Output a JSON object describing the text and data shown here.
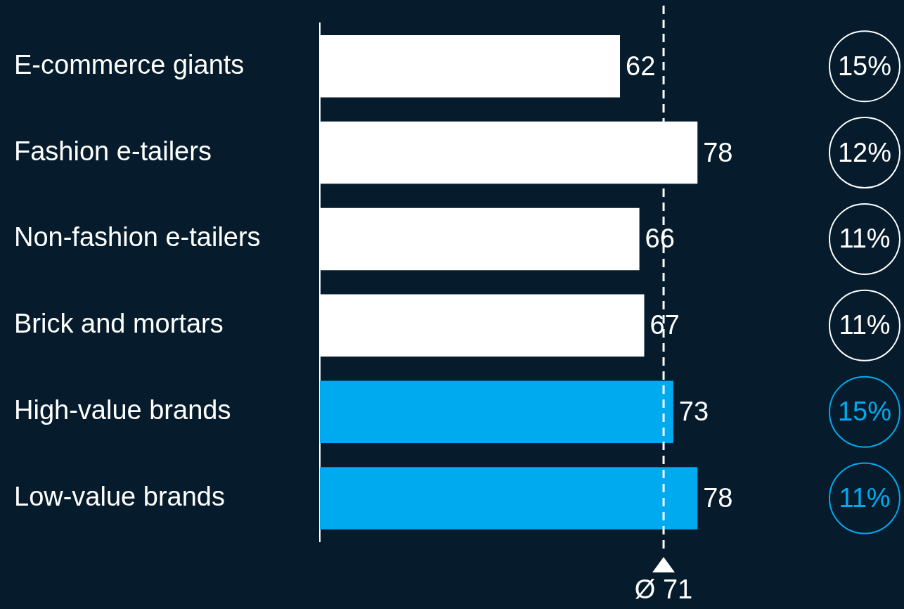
{
  "chart_data": {
    "type": "bar",
    "orientation": "horizontal",
    "categories": [
      "E-commerce giants",
      "Fashion e-tailers",
      "Non-fashion e-tailers",
      "Brick and mortars",
      "High-value brands",
      "Low-value brands"
    ],
    "values": [
      62,
      78,
      66,
      67,
      73,
      78
    ],
    "colors": [
      "#ffffff",
      "#ffffff",
      "#ffffff",
      "#ffffff",
      "#00aaee",
      "#00aaee"
    ],
    "tick_labels": "y",
    "grid": false,
    "legend": false,
    "data_labels": true,
    "ref_lines": [
      {
        "axis": "x",
        "value": 71,
        "label": "Ø 71",
        "color": "#ffffff",
        "line_style": "dashed"
      }
    ],
    "annotations": [
      "15%",
      "12%",
      "11%",
      "11%",
      "15%",
      "11%"
    ]
  }
}
